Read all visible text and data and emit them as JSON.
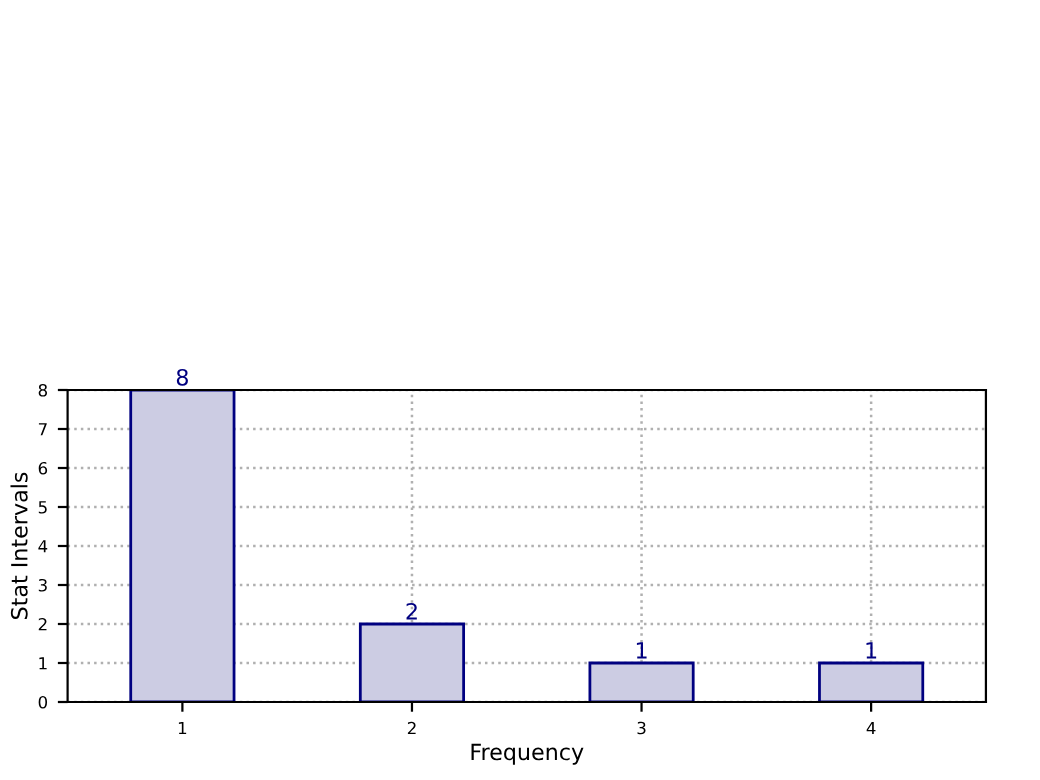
{
  "chart_data": {
    "type": "bar",
    "xlabel": "Frequency",
    "ylabel": "Stat Intervals",
    "categories": [
      "1",
      "2",
      "3",
      "4"
    ],
    "values": [
      8,
      2,
      1,
      1
    ],
    "color": "#cccce3",
    "ylim": [
      0,
      8
    ],
    "yticks": [
      0,
      1,
      2,
      3,
      4,
      5,
      6,
      7,
      8
    ],
    "grid": true,
    "line_style": "dotted",
    "data_labels": true
  }
}
